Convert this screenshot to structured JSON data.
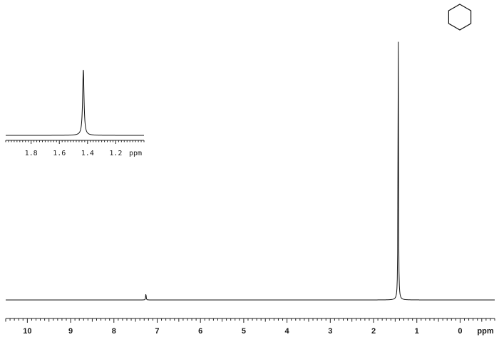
{
  "chart_data": [
    {
      "id": "main-spectrum",
      "type": "line",
      "title": "",
      "xlabel": "ppm",
      "ylabel": "",
      "x_reversed": true,
      "xlim": [
        10.5,
        -0.8
      ],
      "major_ticks": [
        10,
        9,
        8,
        7,
        6,
        5,
        4,
        3,
        2,
        1,
        0
      ],
      "tick_labels": [
        "10",
        "9",
        "8",
        "7",
        "6",
        "5",
        "4",
        "3",
        "2",
        "1",
        "0"
      ],
      "minor_tick_step": 0.1,
      "grid": false,
      "peaks": [
        {
          "shift_ppm": 1.43,
          "relative_intensity": 1.0,
          "note": "cyclohexane singlet"
        },
        {
          "shift_ppm": 7.26,
          "relative_intensity": 0.025,
          "note": "small peak"
        }
      ]
    },
    {
      "id": "inset-expansion",
      "type": "line",
      "title": "",
      "xlabel": "ppm",
      "ylabel": "",
      "x_reversed": true,
      "xlim": [
        1.98,
        1.0
      ],
      "major_ticks": [
        1.8,
        1.6,
        1.4,
        1.2
      ],
      "tick_labels": [
        "1.8",
        "1.6",
        "1.4",
        "1.2"
      ],
      "minor_tick_step": 0.02,
      "grid": false,
      "peaks": [
        {
          "shift_ppm": 1.43,
          "relative_intensity": 1.0
        }
      ]
    }
  ],
  "structure": {
    "name_icon": "cyclohexane-hexagon"
  }
}
